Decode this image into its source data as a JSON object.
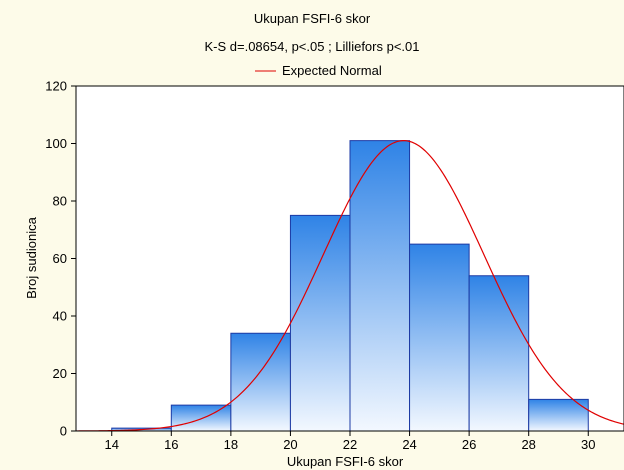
{
  "chart_data": {
    "type": "bar",
    "title": "Ukupan FSFI-6 skor",
    "subtitle": "K-S d=.08654, p<.05 ; Lilliefors p<.01",
    "legend": {
      "entries": [
        "Expected Normal"
      ],
      "placement": "top"
    },
    "xlabel": "Ukupan FSFI-6 skor",
    "ylabel": "Broj sudionica",
    "xlim": [
      12.8,
      31.2
    ],
    "ylim": [
      0,
      120
    ],
    "x_ticks": [
      "14",
      "16",
      "18",
      "20",
      "22",
      "24",
      "26",
      "28",
      "30"
    ],
    "y_ticks": [
      "0",
      "20",
      "40",
      "60",
      "80",
      "100",
      "120"
    ],
    "grid": false,
    "bins": [
      {
        "from": 14,
        "to": 16,
        "count": 1
      },
      {
        "from": 16,
        "to": 18,
        "count": 9
      },
      {
        "from": 18,
        "to": 20,
        "count": 34
      },
      {
        "from": 20,
        "to": 22,
        "count": 75
      },
      {
        "from": 22,
        "to": 24,
        "count": 101
      },
      {
        "from": 24,
        "to": 26,
        "count": 65
      },
      {
        "from": 26,
        "to": 28,
        "count": 54
      },
      {
        "from": 28,
        "to": 30,
        "count": 11
      }
    ],
    "series": [
      {
        "name": "Expected Normal",
        "type": "line",
        "mean": 23.8,
        "sd": 2.7,
        "peak": 101,
        "color": "#e00000"
      }
    ],
    "colors": {
      "bar_top": "#2f83e6",
      "bar_bottom": "#f3f8ff",
      "bar_edge": "#1c3aa4",
      "background": "#fdfbe9",
      "plot_bg": "#ffffff"
    }
  }
}
